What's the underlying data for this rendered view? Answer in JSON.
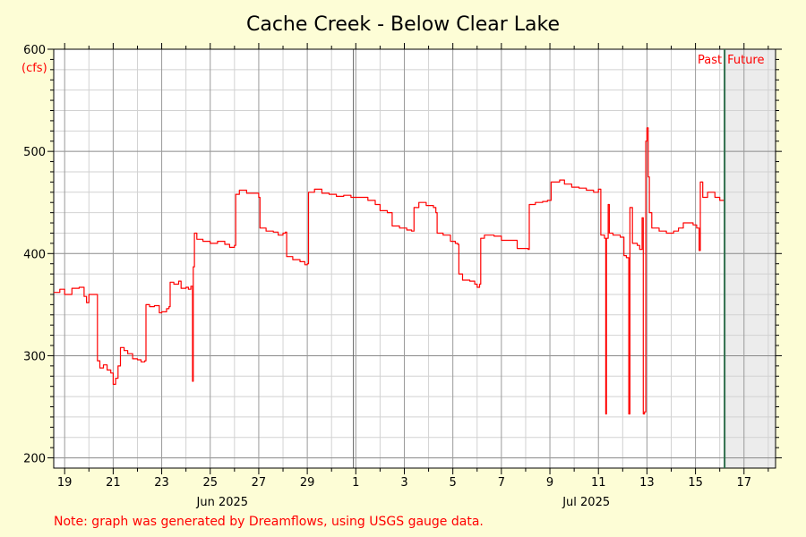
{
  "chart_data": {
    "type": "line",
    "title": "Cache Creek - Below Clear Lake",
    "ylabel": "(cfs)",
    "ylim": [
      190,
      600
    ],
    "y_ticks": [
      200,
      300,
      400,
      500,
      600
    ],
    "x_tick_labels": [
      {
        "day": 19,
        "label": "19"
      },
      {
        "day": 21,
        "label": "21"
      },
      {
        "day": 23,
        "label": "23"
      },
      {
        "day": 25,
        "label": "25"
      },
      {
        "day": 27,
        "label": "27"
      },
      {
        "day": 29,
        "label": "29"
      },
      {
        "day": 31,
        "label": "1"
      },
      {
        "day": 33,
        "label": "3"
      },
      {
        "day": 35,
        "label": "5"
      },
      {
        "day": 37,
        "label": "7"
      },
      {
        "day": 39,
        "label": "9"
      },
      {
        "day": 41,
        "label": "11"
      },
      {
        "day": 43,
        "label": "13"
      },
      {
        "day": 45,
        "label": "15"
      },
      {
        "day": 47,
        "label": "17"
      }
    ],
    "month_labels": [
      {
        "day": 25.5,
        "label": "Jun 2025"
      },
      {
        "day": 40.5,
        "label": "Jul 2025"
      }
    ],
    "xlim": [
      18.55,
      48.3
    ],
    "month_boundary_day": 30.9,
    "now_day": 46.2,
    "past_label": "Past",
    "future_label": "Future",
    "grid": true,
    "series": [
      {
        "color": "#ff0000",
        "points": [
          [
            18.55,
            362
          ],
          [
            18.8,
            365
          ],
          [
            19.0,
            360
          ],
          [
            19.3,
            366
          ],
          [
            19.6,
            367
          ],
          [
            19.8,
            358
          ],
          [
            19.9,
            352
          ],
          [
            20.0,
            360
          ],
          [
            20.2,
            360
          ],
          [
            20.35,
            295
          ],
          [
            20.45,
            288
          ],
          [
            20.6,
            291
          ],
          [
            20.75,
            286
          ],
          [
            20.9,
            283
          ],
          [
            21.0,
            272
          ],
          [
            21.1,
            278
          ],
          [
            21.2,
            290
          ],
          [
            21.3,
            308
          ],
          [
            21.45,
            305
          ],
          [
            21.6,
            302
          ],
          [
            21.8,
            297
          ],
          [
            22.0,
            296
          ],
          [
            22.15,
            294
          ],
          [
            22.3,
            295
          ],
          [
            22.35,
            350
          ],
          [
            22.5,
            348
          ],
          [
            22.7,
            349
          ],
          [
            22.9,
            342
          ],
          [
            23.0,
            343
          ],
          [
            23.2,
            346
          ],
          [
            23.3,
            348
          ],
          [
            23.35,
            372
          ],
          [
            23.5,
            370
          ],
          [
            23.7,
            373
          ],
          [
            23.8,
            366
          ],
          [
            24.0,
            367
          ],
          [
            24.1,
            365
          ],
          [
            24.2,
            368
          ],
          [
            24.27,
            275
          ],
          [
            24.3,
            387
          ],
          [
            24.35,
            420
          ],
          [
            24.45,
            414
          ],
          [
            24.7,
            412
          ],
          [
            25.0,
            410
          ],
          [
            25.3,
            412
          ],
          [
            25.6,
            409
          ],
          [
            25.8,
            406
          ],
          [
            26.0,
            408
          ],
          [
            26.05,
            458
          ],
          [
            26.2,
            462
          ],
          [
            26.5,
            459
          ],
          [
            26.9,
            459
          ],
          [
            27.0,
            455
          ],
          [
            27.05,
            425
          ],
          [
            27.3,
            422
          ],
          [
            27.6,
            421
          ],
          [
            27.8,
            418
          ],
          [
            28.0,
            420
          ],
          [
            28.1,
            421
          ],
          [
            28.15,
            397
          ],
          [
            28.4,
            394
          ],
          [
            28.7,
            392
          ],
          [
            28.9,
            389
          ],
          [
            29.0,
            390
          ],
          [
            29.05,
            460
          ],
          [
            29.3,
            463
          ],
          [
            29.6,
            459
          ],
          [
            29.9,
            458
          ],
          [
            30.2,
            456
          ],
          [
            30.5,
            457
          ],
          [
            30.8,
            455
          ],
          [
            31.2,
            455
          ],
          [
            31.5,
            452
          ],
          [
            31.8,
            448
          ],
          [
            32.0,
            442
          ],
          [
            32.3,
            440
          ],
          [
            32.5,
            427
          ],
          [
            32.8,
            425
          ],
          [
            33.1,
            423
          ],
          [
            33.3,
            422
          ],
          [
            33.4,
            445
          ],
          [
            33.6,
            450
          ],
          [
            33.9,
            447
          ],
          [
            34.2,
            445
          ],
          [
            34.3,
            440
          ],
          [
            34.35,
            420
          ],
          [
            34.6,
            418
          ],
          [
            34.9,
            412
          ],
          [
            35.1,
            410
          ],
          [
            35.2,
            409
          ],
          [
            35.25,
            380
          ],
          [
            35.4,
            374
          ],
          [
            35.7,
            373
          ],
          [
            35.9,
            370
          ],
          [
            36.0,
            367
          ],
          [
            36.1,
            370
          ],
          [
            36.15,
            415
          ],
          [
            36.3,
            418
          ],
          [
            36.7,
            417
          ],
          [
            37.0,
            413
          ],
          [
            37.3,
            413
          ],
          [
            37.6,
            413
          ],
          [
            37.65,
            405
          ],
          [
            38.0,
            405
          ],
          [
            38.1,
            404
          ],
          [
            38.15,
            448
          ],
          [
            38.4,
            450
          ],
          [
            38.7,
            451
          ],
          [
            38.9,
            452
          ],
          [
            39.0,
            452
          ],
          [
            39.05,
            470
          ],
          [
            39.4,
            472
          ],
          [
            39.6,
            468
          ],
          [
            39.9,
            465
          ],
          [
            40.2,
            464
          ],
          [
            40.5,
            462
          ],
          [
            40.8,
            460
          ],
          [
            41.0,
            463
          ],
          [
            41.1,
            418
          ],
          [
            41.25,
            415
          ],
          [
            41.3,
            243
          ],
          [
            41.33,
            415
          ],
          [
            41.4,
            448
          ],
          [
            41.45,
            420
          ],
          [
            41.6,
            418
          ],
          [
            41.9,
            416
          ],
          [
            42.05,
            398
          ],
          [
            42.15,
            396
          ],
          [
            42.25,
            243
          ],
          [
            42.3,
            445
          ],
          [
            42.4,
            410
          ],
          [
            42.6,
            408
          ],
          [
            42.7,
            404
          ],
          [
            42.8,
            435
          ],
          [
            42.85,
            243
          ],
          [
            42.9,
            245
          ],
          [
            42.95,
            510
          ],
          [
            43.0,
            523
          ],
          [
            43.05,
            475
          ],
          [
            43.1,
            440
          ],
          [
            43.2,
            425
          ],
          [
            43.5,
            422
          ],
          [
            43.8,
            420
          ],
          [
            44.1,
            422
          ],
          [
            44.3,
            425
          ],
          [
            44.5,
            430
          ],
          [
            44.8,
            430
          ],
          [
            44.9,
            428
          ],
          [
            45.05,
            425
          ],
          [
            45.15,
            403
          ],
          [
            45.2,
            470
          ],
          [
            45.3,
            455
          ],
          [
            45.5,
            460
          ],
          [
            45.8,
            455
          ],
          [
            46.0,
            452
          ],
          [
            46.2,
            448
          ]
        ]
      }
    ],
    "note": "Note: graph was generated by Dreamflows, using USGS gauge data."
  }
}
